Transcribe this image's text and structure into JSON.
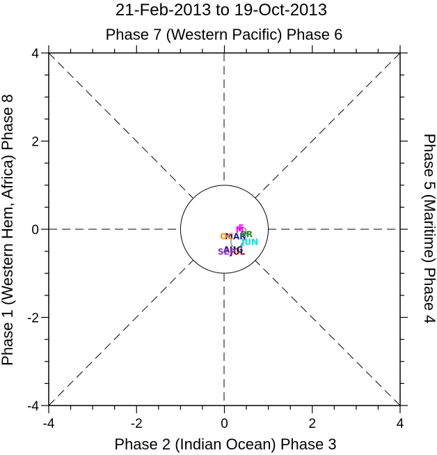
{
  "chart_data": {
    "type": "scatter",
    "title": "21-Feb-2013 to 19-Oct-2013",
    "top_label": "Phase 7 (Western Pacific) Phase 6",
    "bottom_label": "Phase 2 (Indian Ocean) Phase 3",
    "left_label": "Phase 1 (Western Hem, Africa) Phase 8",
    "right_label": "Phase 5 (Maritime) Phase 4",
    "xlim": [
      -4,
      4
    ],
    "ylim": [
      -4,
      4
    ],
    "xticks": [
      -4,
      -2,
      0,
      2,
      4
    ],
    "yticks": [
      -4,
      -2,
      0,
      2,
      4
    ],
    "xtick_labels": [
      "-4",
      "-2",
      "0",
      "2",
      "4"
    ],
    "ytick_labels": [
      "-4",
      "-2",
      "0",
      "2",
      "4"
    ],
    "unit_circle_radius": 1,
    "month_labels": [
      {
        "label": "FEB",
        "x": 0.38,
        "y": 0.05,
        "color": "#ff00ff",
        "visible_text": "F"
      },
      {
        "label": "MAR",
        "x": 0.25,
        "y": -0.15,
        "color": "#1a1aa8",
        "visible_text": "MAR"
      },
      {
        "label": "APR",
        "x": 0.5,
        "y": -0.1,
        "color": "#228b22",
        "visible_text": "PR"
      },
      {
        "label": "MAY",
        "x": 0.35,
        "y": 0.0,
        "color": "#ff00ff",
        "visible_text": "M"
      },
      {
        "label": "JUN",
        "x": 0.58,
        "y": -0.28,
        "color": "#00e5e5",
        "visible_text": "JUN"
      },
      {
        "label": "JUL",
        "x": 0.3,
        "y": -0.5,
        "color": "#8b0000",
        "visible_text": "JUL"
      },
      {
        "label": "AUG",
        "x": 0.2,
        "y": -0.45,
        "color": "#1a1a6e",
        "visible_text": "AUG"
      },
      {
        "label": "SEP",
        "x": 0.05,
        "y": -0.5,
        "color": "#8a2be2",
        "visible_text": "SEP"
      },
      {
        "label": "OCT",
        "x": 0.05,
        "y": -0.15,
        "color": "#ff8c00",
        "visible_text": "OC"
      }
    ],
    "trajectory": [
      {
        "x": 0.35,
        "y": 0.0
      },
      {
        "x": 0.4,
        "y": 0.05
      },
      {
        "x": 0.48,
        "y": 0.02
      },
      {
        "x": 0.5,
        "y": -0.1
      },
      {
        "x": 0.45,
        "y": -0.25
      },
      {
        "x": 0.35,
        "y": -0.4
      },
      {
        "x": 0.25,
        "y": -0.45
      },
      {
        "x": 0.15,
        "y": -0.35
      },
      {
        "x": 0.15,
        "y": -0.2
      }
    ]
  }
}
